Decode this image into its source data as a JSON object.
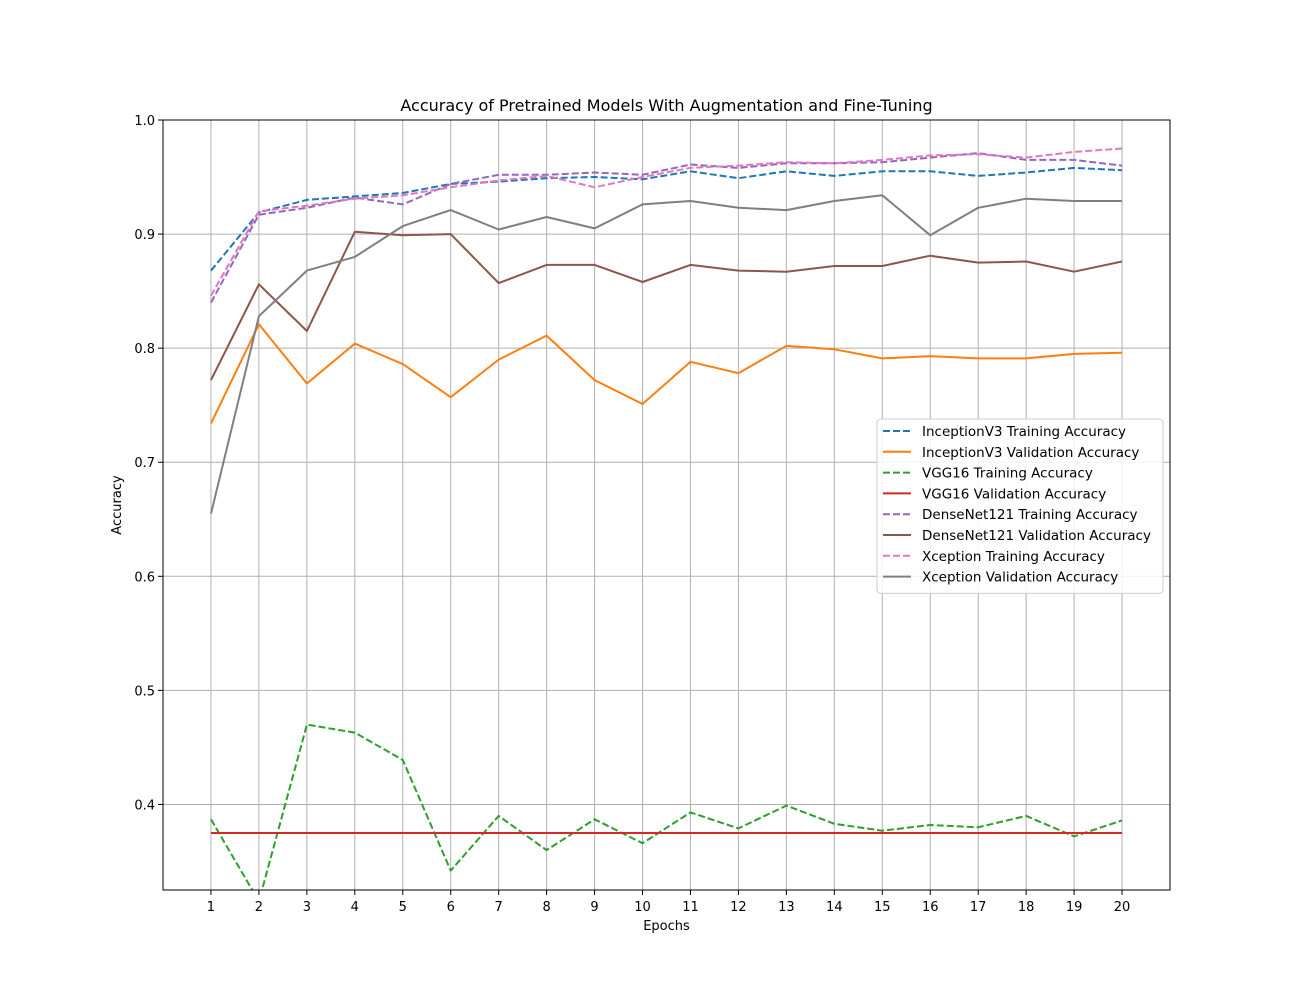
{
  "chart_data": {
    "type": "line",
    "title": "Accuracy of Pretrained Models With Augmentation and Fine-Tuning",
    "xlabel": "Epochs",
    "ylabel": "Accuracy",
    "x": [
      1,
      2,
      3,
      4,
      5,
      6,
      7,
      8,
      9,
      10,
      11,
      12,
      13,
      14,
      15,
      16,
      17,
      18,
      19,
      20
    ],
    "xlim": [
      0,
      21
    ],
    "ylim": [
      0.325,
      1.0
    ],
    "yticks": [
      0.4,
      0.5,
      0.6,
      0.7,
      0.8,
      0.9,
      1.0
    ],
    "ytick_labels": [
      "0.4",
      "0.5",
      "0.6",
      "0.7",
      "0.8",
      "0.9",
      "1.0"
    ],
    "grid": true,
    "legend_position": "center-right",
    "series": [
      {
        "name": "InceptionV3 Training Accuracy",
        "color": "#1f77b4",
        "dashed": true,
        "values": [
          0.868,
          0.919,
          0.93,
          0.933,
          0.936,
          0.944,
          0.946,
          0.949,
          0.95,
          0.948,
          0.955,
          0.949,
          0.955,
          0.951,
          0.955,
          0.955,
          0.951,
          0.954,
          0.958,
          0.956
        ]
      },
      {
        "name": "InceptionV3 Validation Accuracy",
        "color": "#ff7f0e",
        "dashed": false,
        "values": [
          0.734,
          0.821,
          0.769,
          0.804,
          0.786,
          0.757,
          0.79,
          0.811,
          0.772,
          0.751,
          0.788,
          0.778,
          0.802,
          0.799,
          0.791,
          0.793,
          0.791,
          0.791,
          0.795,
          0.796
        ]
      },
      {
        "name": "VGG16 Training Accuracy",
        "color": "#2ca02c",
        "dashed": true,
        "values": [
          0.387,
          0.315,
          0.47,
          0.463,
          0.439,
          0.342,
          0.39,
          0.36,
          0.387,
          0.366,
          0.393,
          0.379,
          0.399,
          0.383,
          0.377,
          0.382,
          0.38,
          0.39,
          0.372,
          0.386
        ]
      },
      {
        "name": "VGG16 Validation Accuracy",
        "color": "#d62728",
        "dashed": false,
        "values": [
          0.375,
          0.375,
          0.375,
          0.375,
          0.375,
          0.375,
          0.375,
          0.375,
          0.375,
          0.375,
          0.375,
          0.375,
          0.375,
          0.375,
          0.375,
          0.375,
          0.375,
          0.375,
          0.375,
          0.375
        ]
      },
      {
        "name": "DenseNet121 Training Accuracy",
        "color": "#9467bd",
        "dashed": true,
        "values": [
          0.84,
          0.917,
          0.923,
          0.932,
          0.926,
          0.944,
          0.952,
          0.952,
          0.954,
          0.952,
          0.961,
          0.958,
          0.962,
          0.962,
          0.963,
          0.967,
          0.971,
          0.965,
          0.965,
          0.96
        ]
      },
      {
        "name": "DenseNet121 Validation Accuracy",
        "color": "#8c564b",
        "dashed": false,
        "values": [
          0.772,
          0.856,
          0.815,
          0.902,
          0.899,
          0.9,
          0.857,
          0.873,
          0.873,
          0.858,
          0.873,
          0.868,
          0.867,
          0.872,
          0.872,
          0.881,
          0.875,
          0.876,
          0.867,
          0.876
        ]
      },
      {
        "name": "Xception Training Accuracy",
        "color": "#e377c2",
        "dashed": true,
        "values": [
          0.846,
          0.92,
          0.925,
          0.931,
          0.934,
          0.941,
          0.947,
          0.951,
          0.941,
          0.95,
          0.958,
          0.96,
          0.963,
          0.962,
          0.965,
          0.969,
          0.97,
          0.967,
          0.972,
          0.975
        ]
      },
      {
        "name": "Xception Validation Accuracy",
        "color": "#7f7f7f",
        "dashed": false,
        "values": [
          0.655,
          0.828,
          0.868,
          0.88,
          0.907,
          0.921,
          0.904,
          0.915,
          0.905,
          0.926,
          0.929,
          0.923,
          0.921,
          0.929,
          0.934,
          0.899,
          0.923,
          0.931,
          0.929,
          0.929
        ]
      }
    ]
  }
}
